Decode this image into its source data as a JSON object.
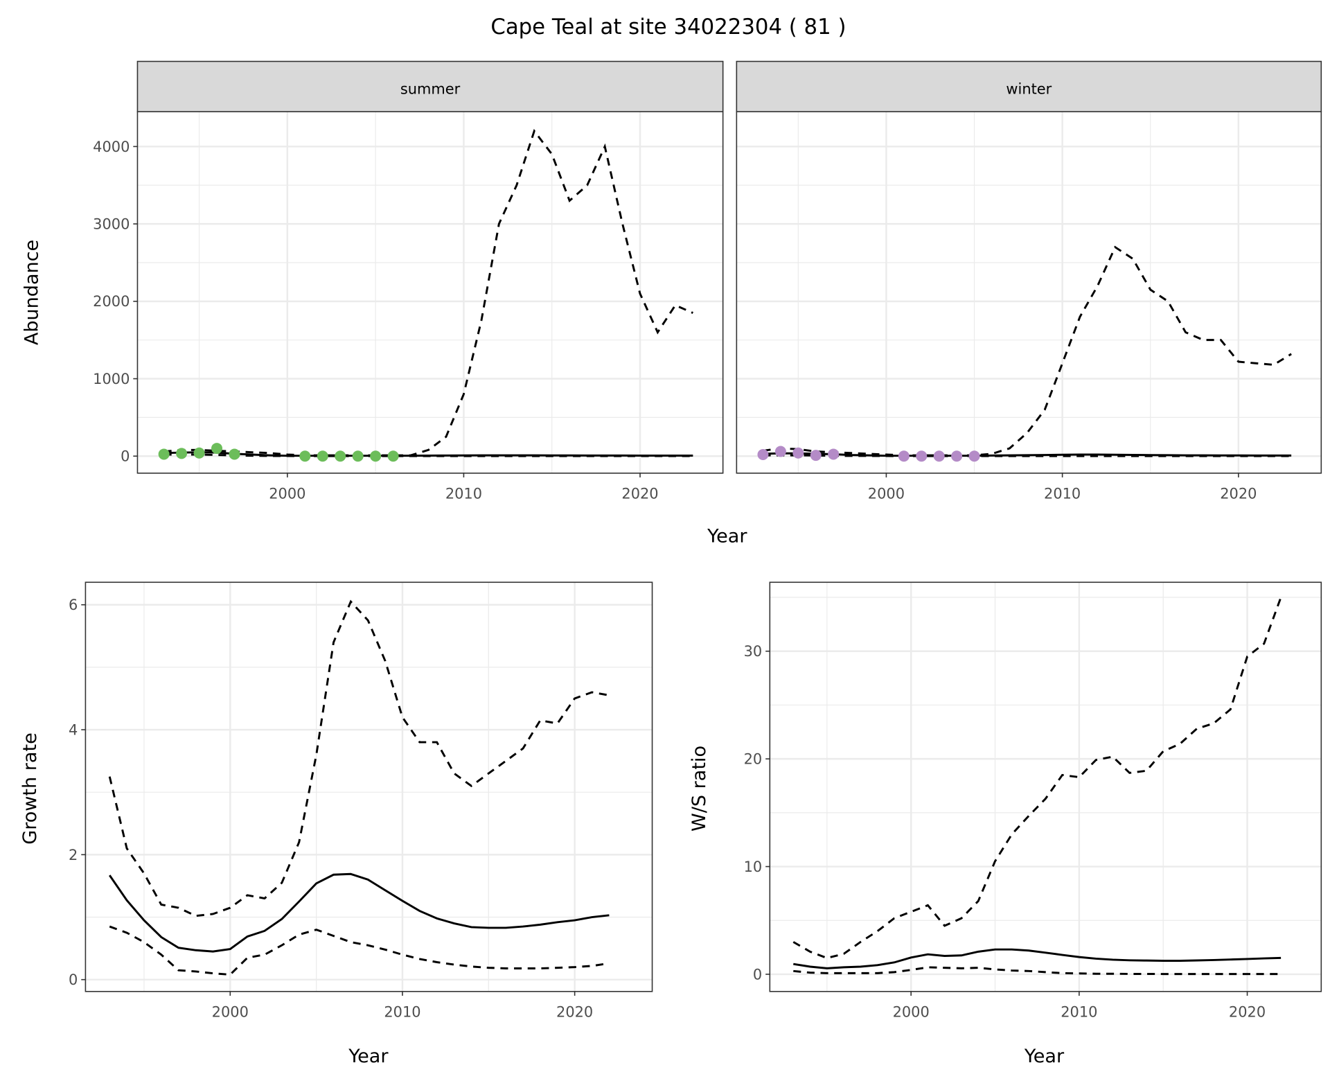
{
  "title": "Cape Teal at site 34022304 ( 81 )",
  "colors": {
    "summer_points": "#6cbd5a",
    "winter_points": "#b48bc7",
    "line": "#000000",
    "grid": "#ebebeb",
    "strip": "#d9d9d9"
  },
  "chart_data": [
    {
      "type": "line",
      "panel": "summer",
      "strip_label": "summer",
      "xlabel": "Year",
      "ylabel": "Abundance",
      "xlim": [
        1991.5,
        2024.7
      ],
      "ylim": [
        -220,
        4450
      ],
      "xticks": [
        2000,
        2010,
        2020
      ],
      "yticks": [
        0,
        1000,
        2000,
        3000,
        4000
      ],
      "grid": true,
      "x": [
        1993,
        1994,
        1995,
        1996,
        1997,
        1998,
        1999,
        2000,
        2001,
        2002,
        2003,
        2004,
        2005,
        2006,
        2007,
        2008,
        2009,
        2010,
        2011,
        2012,
        2013,
        2014,
        2015,
        2016,
        2017,
        2018,
        2019,
        2020,
        2021,
        2022,
        2023
      ],
      "series": [
        {
          "style": "dashed",
          "values": [
            60,
            80,
            80,
            70,
            60,
            50,
            40,
            20,
            10,
            10,
            10,
            10,
            10,
            10,
            10,
            80,
            250,
            800,
            1750,
            3000,
            3500,
            4200,
            3900,
            3300,
            3500,
            4000,
            3000,
            2100,
            1600,
            1950,
            1850
          ]
        },
        {
          "style": "solid",
          "values": [
            40,
            45,
            50,
            45,
            30,
            20,
            10,
            5,
            5,
            5,
            5,
            5,
            5,
            5,
            6,
            7,
            8,
            9,
            10,
            10,
            10,
            10,
            9,
            9,
            8,
            8,
            8,
            7,
            7,
            7,
            7
          ]
        },
        {
          "style": "dashed",
          "values": [
            20,
            20,
            20,
            15,
            10,
            5,
            2,
            1,
            0,
            0,
            0,
            0,
            0,
            0,
            0,
            0,
            0,
            0,
            0,
            0,
            0,
            0,
            0,
            0,
            0,
            0,
            0,
            0,
            0,
            0,
            0
          ]
        }
      ],
      "points": {
        "x": [
          1993,
          1994,
          1995,
          1996,
          1997,
          2001,
          2002,
          2003,
          2004,
          2005,
          2006
        ],
        "values": [
          25,
          35,
          40,
          100,
          25,
          0,
          0,
          0,
          0,
          0,
          0
        ]
      }
    },
    {
      "type": "line",
      "panel": "winter",
      "strip_label": "winter",
      "xlim": [
        1991.5,
        2024.7
      ],
      "ylim": [
        -220,
        4450
      ],
      "xticks": [
        2000,
        2010,
        2020
      ],
      "grid": true,
      "x": [
        1993,
        1994,
        1995,
        1996,
        1997,
        1998,
        1999,
        2000,
        2001,
        2002,
        2003,
        2004,
        2005,
        2006,
        2007,
        2008,
        2009,
        2010,
        2011,
        2012,
        2013,
        2014,
        2015,
        2016,
        2017,
        2018,
        2019,
        2020,
        2021,
        2022,
        2023
      ],
      "series": [
        {
          "style": "dashed",
          "values": [
            70,
            100,
            90,
            60,
            50,
            40,
            30,
            20,
            10,
            10,
            10,
            10,
            10,
            30,
            100,
            300,
            600,
            1200,
            1800,
            2200,
            2700,
            2550,
            2150,
            2000,
            1600,
            1500,
            1500,
            1220,
            1200,
            1180,
            1320
          ]
        },
        {
          "style": "solid",
          "values": [
            30,
            35,
            35,
            30,
            25,
            15,
            10,
            5,
            5,
            5,
            5,
            5,
            5,
            8,
            10,
            12,
            15,
            18,
            20,
            20,
            18,
            16,
            14,
            12,
            10,
            10,
            9,
            9,
            8,
            8,
            8
          ]
        },
        {
          "style": "dashed",
          "values": [
            10,
            10,
            10,
            8,
            5,
            3,
            2,
            1,
            0,
            0,
            0,
            0,
            0,
            0,
            0,
            0,
            0,
            0,
            0,
            0,
            0,
            0,
            0,
            0,
            0,
            0,
            0,
            0,
            0,
            0,
            0
          ]
        }
      ],
      "points": {
        "x": [
          1993,
          1994,
          1995,
          1996,
          1997,
          2001,
          2002,
          2003,
          2004,
          2005
        ],
        "values": [
          20,
          60,
          40,
          10,
          25,
          0,
          0,
          0,
          0,
          0
        ]
      }
    },
    {
      "type": "line",
      "panel": "growth",
      "xlabel": "Year",
      "ylabel": "Growth rate",
      "xlim": [
        1991.6,
        2024.5
      ],
      "ylim": [
        -0.19,
        6.36
      ],
      "xticks": [
        2000,
        2010,
        2020
      ],
      "yticks": [
        0,
        2,
        4,
        6
      ],
      "grid": true,
      "x": [
        1993,
        1994,
        1995,
        1996,
        1997,
        1998,
        1999,
        2000,
        2001,
        2002,
        2003,
        2004,
        2005,
        2006,
        2007,
        2008,
        2009,
        2010,
        2011,
        2012,
        2013,
        2014,
        2015,
        2016,
        2017,
        2018,
        2019,
        2020,
        2021,
        2022
      ],
      "series": [
        {
          "style": "dashed",
          "values": [
            3.25,
            2.1,
            1.7,
            1.2,
            1.15,
            1.02,
            1.05,
            1.15,
            1.35,
            1.3,
            1.55,
            2.2,
            3.6,
            5.4,
            6.05,
            5.75,
            5.1,
            4.2,
            3.8,
            3.8,
            3.3,
            3.1,
            3.3,
            3.5,
            3.7,
            4.15,
            4.1,
            4.5,
            4.6,
            4.55
          ]
        },
        {
          "style": "solid",
          "values": [
            1.67,
            1.27,
            0.95,
            0.68,
            0.51,
            0.47,
            0.45,
            0.49,
            0.69,
            0.78,
            0.97,
            1.25,
            1.54,
            1.68,
            1.69,
            1.6,
            1.43,
            1.26,
            1.1,
            0.98,
            0.9,
            0.84,
            0.83,
            0.83,
            0.85,
            0.88,
            0.92,
            0.95,
            1.0,
            1.03
          ]
        },
        {
          "style": "dashed",
          "values": [
            0.85,
            0.75,
            0.6,
            0.4,
            0.15,
            0.13,
            0.1,
            0.08,
            0.35,
            0.4,
            0.55,
            0.72,
            0.8,
            0.7,
            0.6,
            0.55,
            0.48,
            0.4,
            0.33,
            0.28,
            0.24,
            0.21,
            0.19,
            0.18,
            0.18,
            0.18,
            0.19,
            0.2,
            0.22,
            0.26
          ]
        }
      ]
    },
    {
      "type": "line",
      "panel": "ratio",
      "xlabel": "Year",
      "ylabel": "W/S ratio",
      "xlim": [
        1991.6,
        2024.4
      ],
      "ylim": [
        -1.6,
        36.4
      ],
      "xticks": [
        2000,
        2010,
        2020
      ],
      "yticks": [
        0,
        10,
        20,
        30
      ],
      "grid": true,
      "x": [
        1993,
        1994,
        1995,
        1996,
        1997,
        1998,
        1999,
        2000,
        2001,
        2002,
        2003,
        2004,
        2005,
        2006,
        2007,
        2008,
        2009,
        2010,
        2011,
        2012,
        2013,
        2014,
        2015,
        2016,
        2017,
        2018,
        2019,
        2020,
        2021,
        2022
      ],
      "series": [
        {
          "style": "dashed",
          "values": [
            3.0,
            2.1,
            1.5,
            1.9,
            3.0,
            4.0,
            5.2,
            5.8,
            6.4,
            4.5,
            5.2,
            6.8,
            10.5,
            13.0,
            14.7,
            16.3,
            18.5,
            18.3,
            19.9,
            20.2,
            18.7,
            18.9,
            20.7,
            21.4,
            22.8,
            23.3,
            24.6,
            29.5,
            30.7,
            35.0
          ]
        },
        {
          "style": "solid",
          "values": [
            0.95,
            0.7,
            0.55,
            0.65,
            0.7,
            0.85,
            1.1,
            1.55,
            1.85,
            1.7,
            1.75,
            2.1,
            2.3,
            2.3,
            2.2,
            2.0,
            1.8,
            1.6,
            1.45,
            1.35,
            1.3,
            1.27,
            1.25,
            1.25,
            1.28,
            1.32,
            1.37,
            1.42,
            1.47,
            1.52
          ]
        },
        {
          "style": "dashed",
          "values": [
            0.3,
            0.15,
            0.1,
            0.1,
            0.1,
            0.1,
            0.2,
            0.4,
            0.65,
            0.6,
            0.55,
            0.6,
            0.45,
            0.35,
            0.3,
            0.2,
            0.1,
            0.08,
            0.05,
            0.05,
            0.03,
            0.03,
            0.02,
            0.02,
            0.02,
            0.02,
            0.02,
            0.02,
            0.02,
            0.02
          ]
        }
      ]
    }
  ]
}
